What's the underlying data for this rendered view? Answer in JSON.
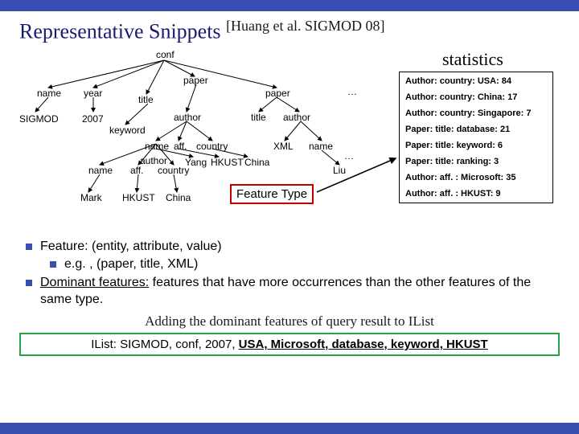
{
  "title_main": "Representative Snippets",
  "title_cite": "[Huang et al. SIGMOD 08]",
  "tree": {
    "conf": "conf",
    "name1": "name",
    "year": "year",
    "sigmod": "SIGMOD",
    "y2007": "2007",
    "title1": "title",
    "keyword": "keyword",
    "paper1": "paper",
    "author1": "author",
    "name2": "name",
    "aff1": "aff.",
    "country1": "country",
    "paper2": "paper",
    "title2": "title",
    "author2": "author",
    "xml": "XML",
    "name3": "name",
    "dots1": "…",
    "dots2": "…",
    "author3": "author",
    "name4": "name",
    "aff2": "aff.",
    "country2": "country",
    "mark": "Mark",
    "hkust": "HKUST",
    "china": "China",
    "yang": "Yang",
    "hkust2": "HKUST",
    "china2": "China",
    "liu": "Liu"
  },
  "stats_title": "statistics",
  "stats": [
    "Author: country: USA: 84",
    "Author: country: China: 17",
    "Author: country: Singapore: 7",
    "Paper: title: database: 21",
    "Paper: title: keyword: 6",
    "Paper: title: ranking: 3",
    "Author: aff. : Microsoft: 35",
    "Author: aff. : HKUST: 9"
  ],
  "feature_type": "Feature Type",
  "bullet1": "Feature: (entity, attribute, value)",
  "bullet1a": "e.g. , (paper, title, XML)",
  "bullet2_a": "Dominant features:",
  "bullet2_b": " features that have more occurrences than the other features of the same type.",
  "adding": "Adding the dominant features of query result to IList",
  "ilist_prefix": "IList: SIGMOD, conf, 2007, ",
  "ilist_kw": "USA, Microsoft, database, keyword, HKUST",
  "colors": {
    "bar": "#3a4db0",
    "feature_border": "#c00000",
    "ilist_border": "#2aa246",
    "arrow": "#000000"
  },
  "edges": [
    [
      180,
      18,
      36,
      52
    ],
    [
      180,
      18,
      92,
      52
    ],
    [
      180,
      18,
      158,
      60
    ],
    [
      180,
      18,
      218,
      38
    ],
    [
      180,
      18,
      320,
      52
    ],
    [
      36,
      64,
      20,
      82
    ],
    [
      92,
      64,
      92,
      82
    ],
    [
      220,
      48,
      208,
      82
    ],
    [
      160,
      72,
      132,
      98
    ],
    [
      320,
      64,
      298,
      82
    ],
    [
      320,
      64,
      348,
      82
    ],
    [
      208,
      94,
      170,
      118
    ],
    [
      208,
      94,
      198,
      118
    ],
    [
      208,
      94,
      240,
      118
    ],
    [
      350,
      94,
      330,
      118
    ],
    [
      350,
      94,
      376,
      118
    ],
    [
      170,
      122,
      100,
      148
    ],
    [
      170,
      122,
      148,
      148
    ],
    [
      170,
      122,
      192,
      148
    ],
    [
      100,
      160,
      86,
      182
    ],
    [
      148,
      160,
      146,
      182
    ],
    [
      192,
      160,
      196,
      182
    ],
    [
      376,
      130,
      398,
      148
    ],
    [
      170,
      128,
      216,
      138
    ],
    [
      198,
      128,
      248,
      138
    ],
    [
      240,
      128,
      284,
      138
    ]
  ]
}
